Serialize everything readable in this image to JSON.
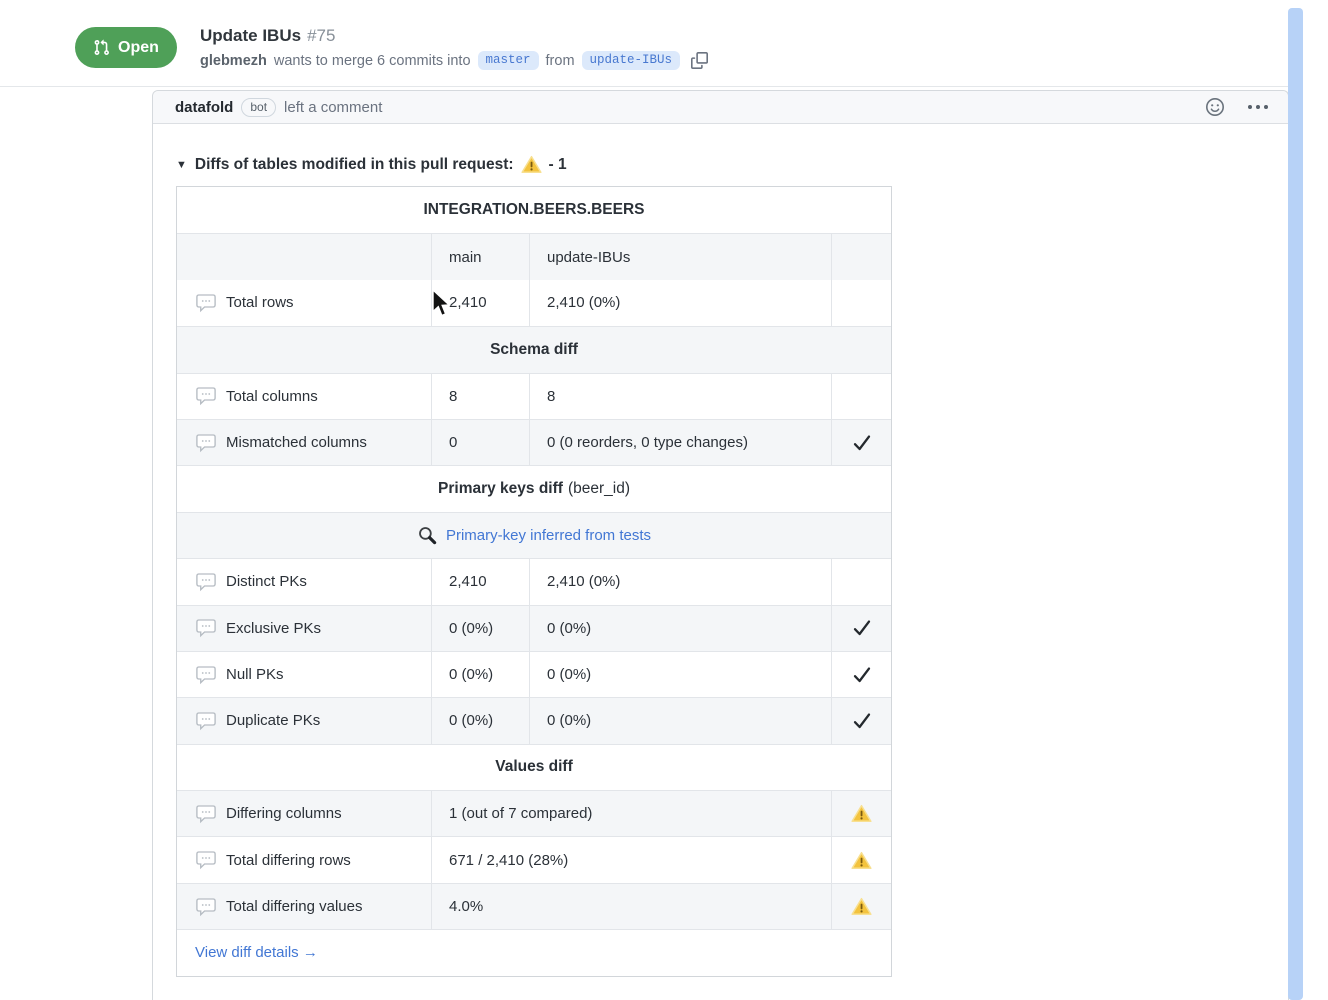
{
  "pr": {
    "status": "Open",
    "title": "Update IBUs",
    "number": "#75",
    "author": "glebmezh",
    "merge_text_1": "wants to merge 6 commits into",
    "base_branch": "master",
    "merge_text_2": "from",
    "head_branch": "update-IBUs"
  },
  "comment": {
    "author": "datafold",
    "badge": "bot",
    "action_text": "left a comment"
  },
  "diffs": {
    "heading": "Diffs of tables modified in this pull request:",
    "heading_suffix": "- 1",
    "table_title": "INTEGRATION.BEERS.BEERS",
    "col_base": "main",
    "col_head": "update-IBUs",
    "rows": [
      {
        "type": "data",
        "label": "Total rows",
        "main": "2,410",
        "update": "2,410 (0%)",
        "status": ""
      },
      {
        "type": "section",
        "bold": "Schema diff",
        "normal": ""
      },
      {
        "type": "data",
        "label": "Total columns",
        "main": "8",
        "update": "8",
        "status": ""
      },
      {
        "type": "data",
        "label": "Mismatched columns",
        "main": "0",
        "update": "0 (0 reorders, 0 type changes)",
        "status": "check"
      },
      {
        "type": "section",
        "bold": "Primary keys diff",
        "normal": "(beer_id)"
      },
      {
        "type": "pk-link",
        "label": "Primary-key inferred from tests",
        "icon": "magnifier-icon"
      },
      {
        "type": "data",
        "label": "Distinct PKs",
        "main": "2,410",
        "update": "2,410 (0%)",
        "status": ""
      },
      {
        "type": "data",
        "label": "Exclusive PKs",
        "main": "0 (0%)",
        "update": "0 (0%)",
        "status": "check"
      },
      {
        "type": "data",
        "label": "Null PKs",
        "main": "0 (0%)",
        "update": "0 (0%)",
        "status": "check"
      },
      {
        "type": "data",
        "label": "Duplicate PKs",
        "main": "0 (0%)",
        "update": "0 (0%)",
        "status": "check"
      },
      {
        "type": "section",
        "bold": "Values diff",
        "normal": ""
      },
      {
        "type": "data",
        "label": "Differing columns",
        "span": "1 (out of 7 compared)",
        "status": "warn"
      },
      {
        "type": "data",
        "label": "Total differing rows",
        "span": "671 / 2,410 (28%)",
        "status": "warn"
      },
      {
        "type": "data",
        "label": "Total differing values",
        "span": "4.0%",
        "status": "warn"
      },
      {
        "type": "link",
        "label": "View diff details →"
      }
    ]
  },
  "colors": {
    "open_green": "#4fa058",
    "link_blue": "#4277d4",
    "warning_yellow": "#f3c33e",
    "scrollbar_blue": "#b7d2f7",
    "zebra_gray": "#f4f6f8"
  }
}
